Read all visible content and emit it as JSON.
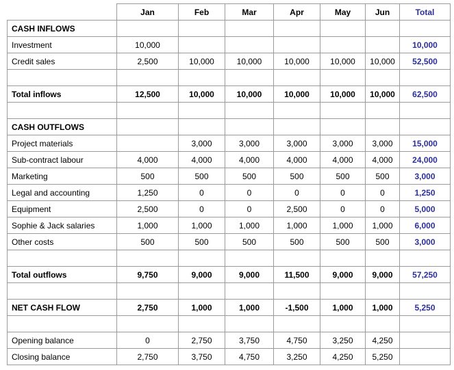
{
  "header": {
    "columns": [
      "Jan",
      "Feb",
      "Mar",
      "Apr",
      "May",
      "Jun",
      "Total"
    ]
  },
  "rows": [
    {
      "label": "CASH INFLOWS",
      "cells": [
        null,
        null,
        null,
        null,
        null,
        null,
        null
      ]
    },
    {
      "label": "Investment",
      "cells": [
        "10,000",
        null,
        null,
        null,
        null,
        null,
        "10,000"
      ]
    },
    {
      "label": "Credit sales",
      "cells": [
        "2,500",
        "10,000",
        "10,000",
        "10,000",
        "10,000",
        "10,000",
        "52,500"
      ]
    },
    null,
    {
      "label": "Total inflows",
      "cells": [
        "12,500",
        "10,000",
        "10,000",
        "10,000",
        "10,000",
        "10,000",
        "62,500"
      ]
    },
    null,
    {
      "label": "CASH OUTFLOWS",
      "cells": [
        null,
        null,
        null,
        null,
        null,
        null,
        null
      ]
    },
    {
      "label": "Project materials",
      "cells": [
        null,
        "3,000",
        "3,000",
        "3,000",
        "3,000",
        "3,000",
        "15,000"
      ]
    },
    {
      "label": "Sub-contract labour",
      "cells": [
        "4,000",
        "4,000",
        "4,000",
        "4,000",
        "4,000",
        "4,000",
        "24,000"
      ]
    },
    {
      "label": "Marketing",
      "cells": [
        "500",
        "500",
        "500",
        "500",
        "500",
        "500",
        "3,000"
      ]
    },
    {
      "label": "Legal and accounting",
      "cells": [
        "1,250",
        "0",
        "0",
        "0",
        "0",
        "0",
        "1,250"
      ]
    },
    {
      "label": "Equipment",
      "cells": [
        "2,500",
        "0",
        "0",
        "2,500",
        "0",
        "0",
        "5,000"
      ]
    },
    {
      "label": "Sophie & Jack salaries",
      "cells": [
        "1,000",
        "1,000",
        "1,000",
        "1,000",
        "1,000",
        "1,000",
        "6,000"
      ]
    },
    {
      "label": "Other costs",
      "cells": [
        "500",
        "500",
        "500",
        "500",
        "500",
        "500",
        "3,000"
      ]
    },
    null,
    {
      "label": "Total outflows",
      "cells": [
        "9,750",
        "9,000",
        "9,000",
        "11,500",
        "9,000",
        "9,000",
        "57,250"
      ]
    },
    null,
    {
      "label": "NET CASH FLOW",
      "cells": [
        "2,750",
        "1,000",
        "1,000",
        "-1,500",
        "1,000",
        "1,000",
        "5,250"
      ]
    },
    null,
    {
      "label": "Opening balance",
      "cells": [
        "0",
        "2,750",
        "3,750",
        "4,750",
        "3,250",
        "4,250",
        null
      ]
    },
    {
      "label": "Closing balance",
      "cells": [
        "2,750",
        "3,750",
        "4,750",
        "3,250",
        "4,250",
        "5,250",
        null
      ]
    }
  ]
}
